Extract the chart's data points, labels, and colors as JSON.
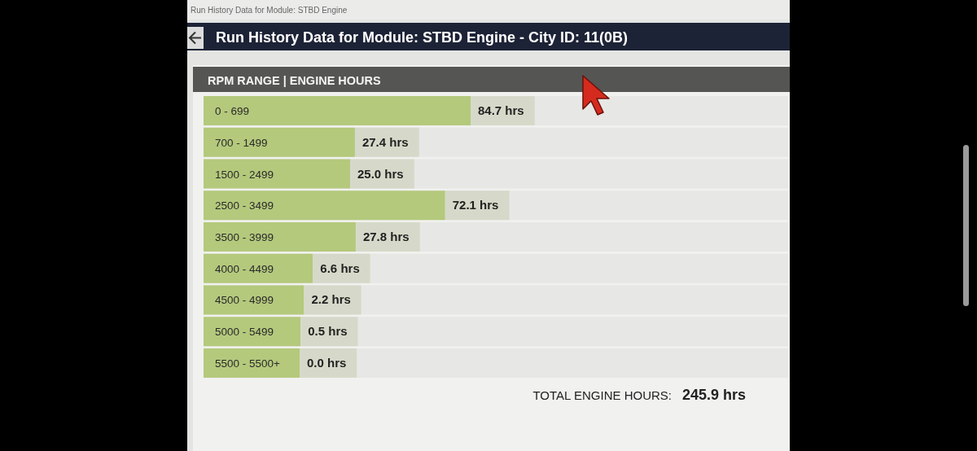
{
  "chart_data": {
    "type": "bar",
    "orientation": "horizontal",
    "title": "Run History Data for Module: STBD Engine - City ID: 11(0B)",
    "subtitle": "RPM RANGE | ENGINE HOURS",
    "categories": [
      "0 - 699",
      "700 - 1499",
      "1500 - 2499",
      "2500 - 3499",
      "3500 - 3999",
      "4000 - 4499",
      "4500 - 4999",
      "5000 - 5499",
      "5500 - 5500+"
    ],
    "values": [
      84.7,
      27.4,
      25.0,
      72.1,
      27.8,
      6.6,
      2.2,
      0.5,
      0.0
    ],
    "value_labels": [
      "84.7 hrs",
      "27.4 hrs",
      "25.0 hrs",
      "72.1 hrs",
      "27.8 hrs",
      "6.6 hrs",
      "2.2 hrs",
      "0.5 hrs",
      "0.0 hrs"
    ],
    "color": "#b4c97c",
    "annotations": [
      "Run History Data for Module: STBD Engine",
      "TOTAL ENGINE HOURS:",
      "245.9 hrs"
    ]
  }
}
